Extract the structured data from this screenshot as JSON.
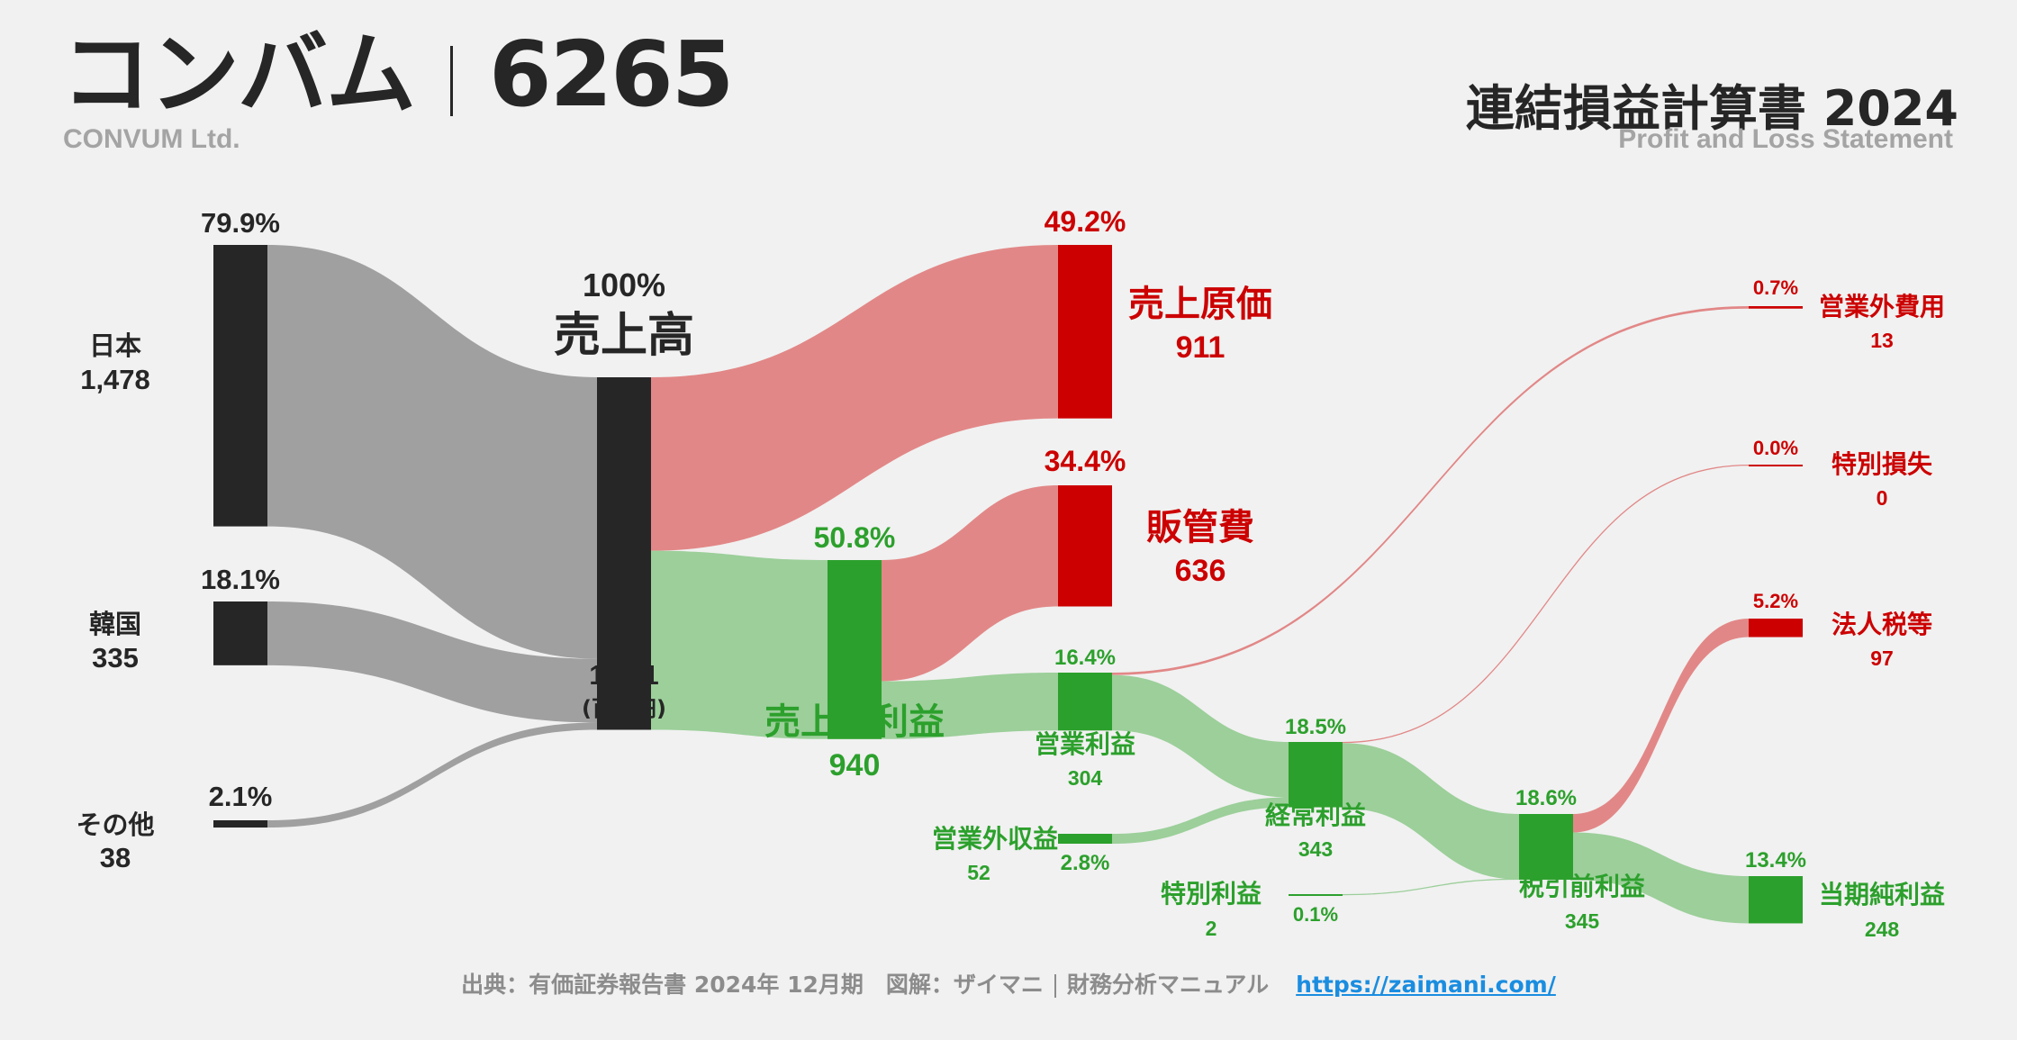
{
  "header": {
    "company_name": "コンバム",
    "ticker": "6265",
    "company_name_en": "CONVUM Ltd.",
    "statement_title": "連結損益計算書 2024",
    "statement_title_en": "Profit and Loss Statement"
  },
  "footer": {
    "source": "出典：有価証券報告書 2024年 12月期　図解：ザイマニ",
    "site_name": "財務分析マニュアル",
    "url": "https://zaimani.com/"
  },
  "colors": {
    "neutral_node": "#262626",
    "neutral_flow": "#a0a0a0",
    "cost_node": "#cc0000",
    "cost_flow": "#e28787",
    "profit_node": "#2ca02c",
    "profit_flow": "#9ccf9a"
  },
  "chart_data": {
    "type": "sankey",
    "unit": "(百万円)",
    "nodes": [
      {
        "id": "japan",
        "label": "日本",
        "value": "1,478",
        "pct": "79.9%",
        "kind": "neutral"
      },
      {
        "id": "korea",
        "label": "韓国",
        "value": "335",
        "pct": "18.1%",
        "kind": "neutral"
      },
      {
        "id": "other",
        "label": "その他",
        "value": "38",
        "pct": "2.1%",
        "kind": "neutral"
      },
      {
        "id": "revenue",
        "label": "売上高",
        "value": "1,851",
        "pct": "100%",
        "kind": "neutral"
      },
      {
        "id": "cogs",
        "label": "売上原価",
        "value": "911",
        "pct": "49.2%",
        "kind": "cost"
      },
      {
        "id": "gross",
        "label": "売上総利益",
        "value": "940",
        "pct": "50.8%",
        "kind": "profit"
      },
      {
        "id": "sga",
        "label": "販管費",
        "value": "636",
        "pct": "34.4%",
        "kind": "cost"
      },
      {
        "id": "op",
        "label": "営業利益",
        "value": "304",
        "pct": "16.4%",
        "kind": "profit"
      },
      {
        "id": "nonop_inc",
        "label": "営業外収益",
        "value": "52",
        "pct": "2.8%",
        "kind": "profit"
      },
      {
        "id": "nonop_exp",
        "label": "営業外費用",
        "value": "13",
        "pct": "0.7%",
        "kind": "cost"
      },
      {
        "id": "ordinary",
        "label": "経常利益",
        "value": "343",
        "pct": "18.5%",
        "kind": "profit"
      },
      {
        "id": "ext_gain",
        "label": "特別利益",
        "value": "2",
        "pct": "0.1%",
        "kind": "profit"
      },
      {
        "id": "ext_loss",
        "label": "特別損失",
        "value": "0",
        "pct": "0.0%",
        "kind": "cost"
      },
      {
        "id": "pretax",
        "label": "税引前利益",
        "value": "345",
        "pct": "18.6%",
        "kind": "profit"
      },
      {
        "id": "tax",
        "label": "法人税等",
        "value": "97",
        "pct": "5.2%",
        "kind": "cost"
      },
      {
        "id": "net",
        "label": "当期純利益",
        "value": "248",
        "pct": "13.4%",
        "kind": "profit"
      }
    ],
    "links": [
      {
        "source": "japan",
        "target": "revenue",
        "value": 1478
      },
      {
        "source": "korea",
        "target": "revenue",
        "value": 335
      },
      {
        "source": "other",
        "target": "revenue",
        "value": 38
      },
      {
        "source": "revenue",
        "target": "cogs",
        "value": 911
      },
      {
        "source": "revenue",
        "target": "gross",
        "value": 940
      },
      {
        "source": "gross",
        "target": "sga",
        "value": 636
      },
      {
        "source": "gross",
        "target": "op",
        "value": 304
      },
      {
        "source": "op",
        "target": "nonop_exp",
        "value": 13
      },
      {
        "source": "op",
        "target": "ordinary",
        "value": 291
      },
      {
        "source": "nonop_inc",
        "target": "ordinary",
        "value": 52
      },
      {
        "source": "ordinary",
        "target": "ext_loss",
        "value": 0
      },
      {
        "source": "ordinary",
        "target": "pretax",
        "value": 343
      },
      {
        "source": "ext_gain",
        "target": "pretax",
        "value": 2
      },
      {
        "source": "pretax",
        "target": "tax",
        "value": 97
      },
      {
        "source": "pretax",
        "target": "net",
        "value": 248
      }
    ]
  }
}
